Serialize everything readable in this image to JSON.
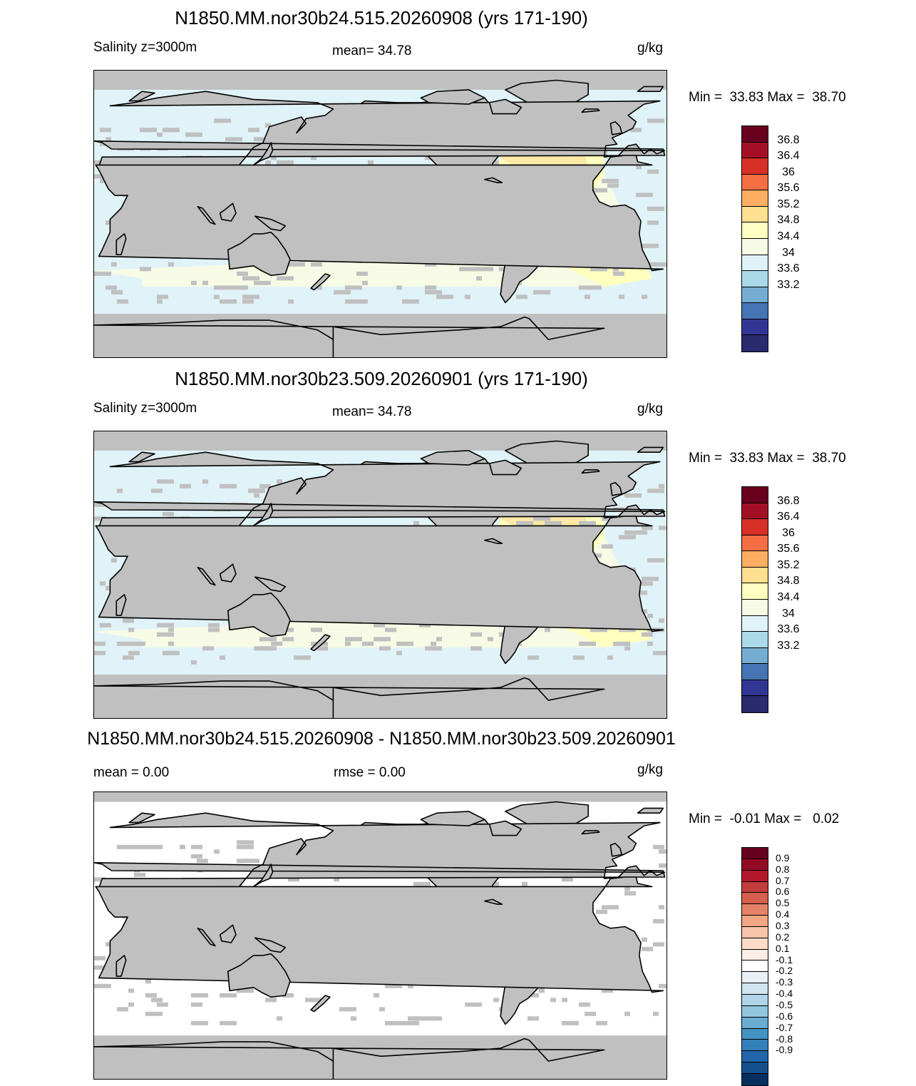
{
  "panels": [
    {
      "title": "N1850.MM.nor30b24.515.20260908 (yrs 171-190)",
      "left_label": "Salinity z=3000m",
      "center_label": "mean=  34.78",
      "units": "g/kg",
      "minmax": "Min =  33.83 Max =  38.70",
      "colorbar": {
        "colors": [
          "#67001f",
          "#a50f26",
          "#d73027",
          "#f46d43",
          "#fdae61",
          "#fee090",
          "#ffffbf",
          "#f7fbe5",
          "#e0f3f8",
          "#abd9e9",
          "#74add1",
          "#4575b4",
          "#313695",
          "#2a2a6e"
        ],
        "labels": [
          "36.8",
          "36.4",
          "36",
          "35.6",
          "35.2",
          "34.8",
          "34.4",
          "34",
          "33.6",
          "33.2"
        ]
      },
      "map_fill": "salinity"
    },
    {
      "title": "N1850.MM.nor30b23.509.20260901 (yrs 171-190)",
      "left_label": "Salinity z=3000m",
      "center_label": "mean=  34.78",
      "units": "g/kg",
      "minmax": "Min =  33.83 Max =  38.70",
      "colorbar": {
        "colors": [
          "#67001f",
          "#a50f26",
          "#d73027",
          "#f46d43",
          "#fdae61",
          "#fee090",
          "#ffffbf",
          "#f7fbe5",
          "#e0f3f8",
          "#abd9e9",
          "#74add1",
          "#4575b4",
          "#313695",
          "#2a2a6e"
        ],
        "labels": [
          "36.8",
          "36.4",
          "36",
          "35.6",
          "35.2",
          "34.8",
          "34.4",
          "34",
          "33.6",
          "33.2"
        ]
      },
      "map_fill": "salinity"
    },
    {
      "title": "N1850.MM.nor30b24.515.20260908 - N1850.MM.nor30b23.509.20260901",
      "left_label": "mean =   0.00",
      "center_label": "rmse =   0.00",
      "units": "g/kg",
      "minmax": "Min =  -0.01 Max =   0.02",
      "colorbar": {
        "colors": [
          "#67001f",
          "#940b26",
          "#b2182b",
          "#c43c3c",
          "#d6604d",
          "#e58368",
          "#f4a582",
          "#f8c5a9",
          "#fddbc7",
          "#fbeee6",
          "#ffffff",
          "#e8f1f6",
          "#d1e5f0",
          "#b0d5e7",
          "#92c5de",
          "#6aacd0",
          "#4393c3",
          "#3480b9",
          "#2166ac",
          "#14508c",
          "#053061"
        ],
        "labels": [
          "0.9",
          "0.8",
          "0.7",
          "0.6",
          "0.5",
          "0.4",
          "0.3",
          "0.2",
          "0.1",
          "-0.1",
          "-0.2",
          "-0.3",
          "-0.4",
          "-0.5",
          "-0.6",
          "-0.7",
          "-0.8",
          "-0.9"
        ]
      },
      "map_fill": "difference"
    }
  ]
}
